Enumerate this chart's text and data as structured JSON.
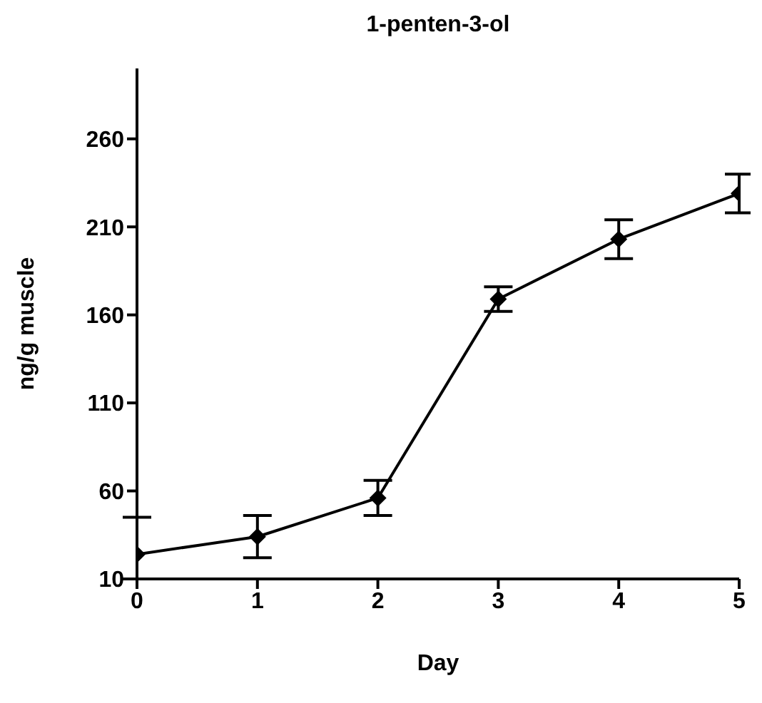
{
  "chart_data": {
    "type": "line",
    "title": "1-penten-3-ol",
    "xlabel": "Day",
    "ylabel": "ng/g muscle",
    "x": [
      0,
      1,
      2,
      3,
      4,
      5
    ],
    "series": [
      {
        "color": "#000000",
        "values": [
          24,
          34,
          56,
          169,
          203,
          229
        ],
        "errors": [
          [
            10,
            45
          ],
          12,
          10,
          7,
          11,
          11
        ]
      }
    ],
    "xlim": [
      0,
      5
    ],
    "xticks": [
      0,
      1,
      2,
      3,
      4,
      5
    ],
    "ylim": [
      10,
      300
    ],
    "yticks": [
      10,
      60,
      110,
      160,
      210,
      260
    ],
    "grid": false,
    "marker": "diamond",
    "line_style": "solid"
  }
}
